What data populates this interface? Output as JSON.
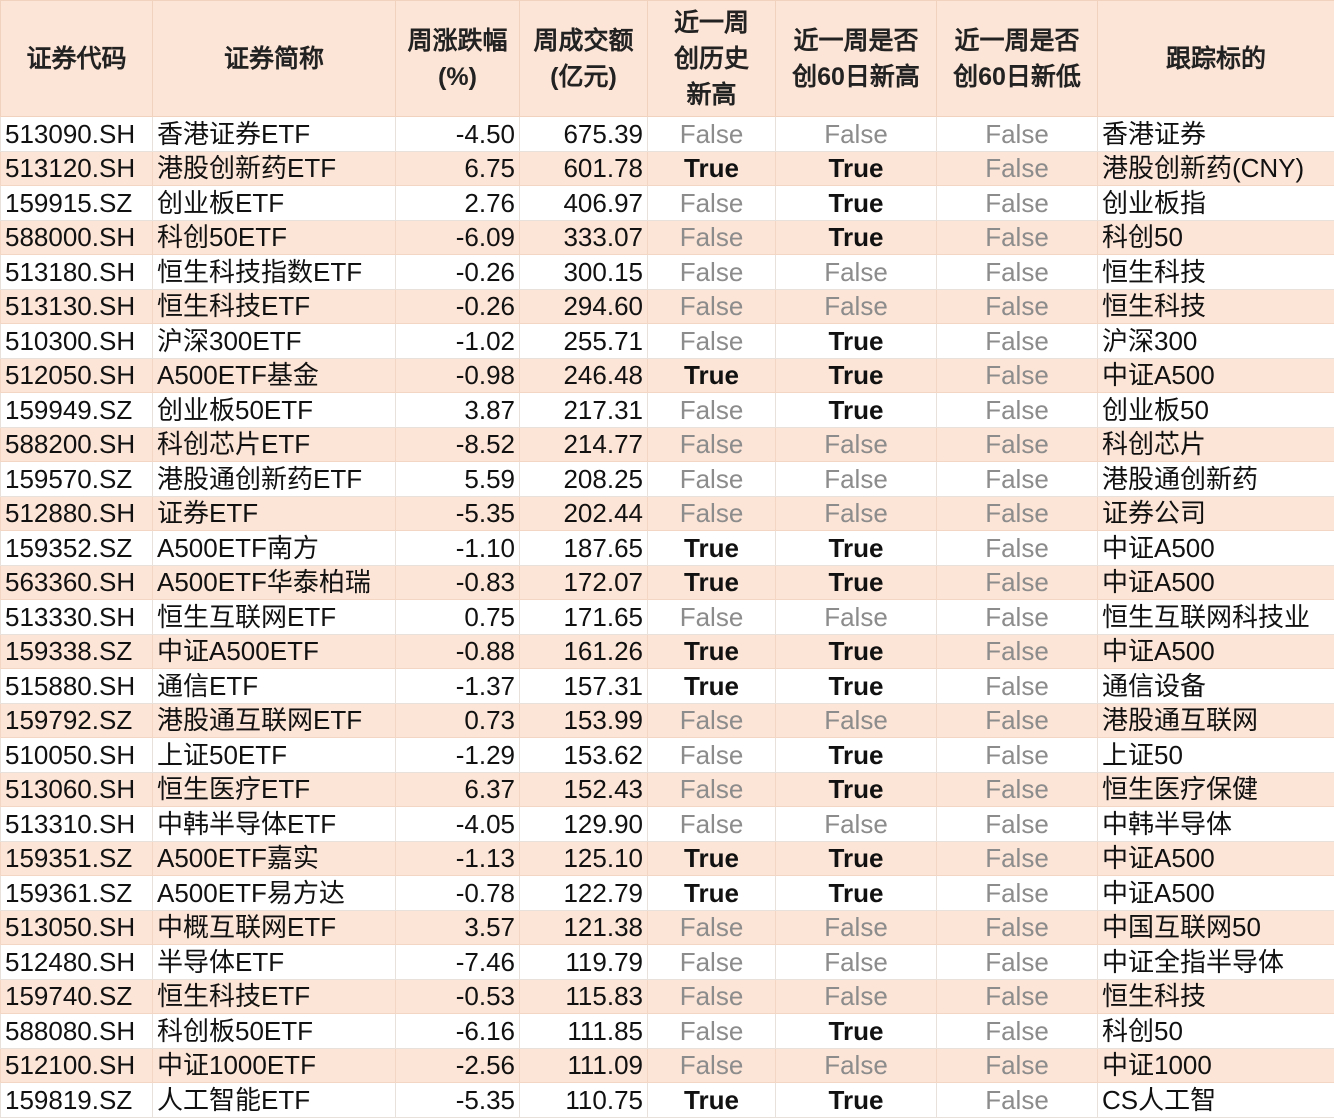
{
  "headers": [
    "证券代码",
    "证券简称",
    "周涨跌幅\n(%)",
    "周成交额\n(亿元)",
    "近一周\n创历史\n新高",
    "近一周是否\n创60日新高",
    "近一周是否\n创60日新低",
    "跟踪标的"
  ],
  "colors": {
    "header_bg": "#FCE4D6",
    "alt_row_bg": "#FCE4D6",
    "false_text": "#8c8c8c"
  },
  "rows": [
    [
      "513090.SH",
      "香港证券ETF",
      "-4.50",
      "675.39",
      "False",
      "False",
      "False",
      "香港证券"
    ],
    [
      "513120.SH",
      "港股创新药ETF",
      "6.75",
      "601.78",
      "True",
      "True",
      "False",
      "港股创新药(CNY)"
    ],
    [
      "159915.SZ",
      "创业板ETF",
      "2.76",
      "406.97",
      "False",
      "True",
      "False",
      "创业板指"
    ],
    [
      "588000.SH",
      "科创50ETF",
      "-6.09",
      "333.07",
      "False",
      "True",
      "False",
      "科创50"
    ],
    [
      "513180.SH",
      "恒生科技指数ETF",
      "-0.26",
      "300.15",
      "False",
      "False",
      "False",
      "恒生科技"
    ],
    [
      "513130.SH",
      "恒生科技ETF",
      "-0.26",
      "294.60",
      "False",
      "False",
      "False",
      "恒生科技"
    ],
    [
      "510300.SH",
      "沪深300ETF",
      "-1.02",
      "255.71",
      "False",
      "True",
      "False",
      "沪深300"
    ],
    [
      "512050.SH",
      "A500ETF基金",
      "-0.98",
      "246.48",
      "True",
      "True",
      "False",
      "中证A500"
    ],
    [
      "159949.SZ",
      "创业板50ETF",
      "3.87",
      "217.31",
      "False",
      "True",
      "False",
      "创业板50"
    ],
    [
      "588200.SH",
      "科创芯片ETF",
      "-8.52",
      "214.77",
      "False",
      "False",
      "False",
      "科创芯片"
    ],
    [
      "159570.SZ",
      "港股通创新药ETF",
      "5.59",
      "208.25",
      "False",
      "False",
      "False",
      "港股通创新药"
    ],
    [
      "512880.SH",
      "证券ETF",
      "-5.35",
      "202.44",
      "False",
      "False",
      "False",
      "证券公司"
    ],
    [
      "159352.SZ",
      "A500ETF南方",
      "-1.10",
      "187.65",
      "True",
      "True",
      "False",
      "中证A500"
    ],
    [
      "563360.SH",
      "A500ETF华泰柏瑞",
      "-0.83",
      "172.07",
      "True",
      "True",
      "False",
      "中证A500"
    ],
    [
      "513330.SH",
      "恒生互联网ETF",
      "0.75",
      "171.65",
      "False",
      "False",
      "False",
      "恒生互联网科技业"
    ],
    [
      "159338.SZ",
      "中证A500ETF",
      "-0.88",
      "161.26",
      "True",
      "True",
      "False",
      "中证A500"
    ],
    [
      "515880.SH",
      "通信ETF",
      "-1.37",
      "157.31",
      "True",
      "True",
      "False",
      "通信设备"
    ],
    [
      "159792.SZ",
      "港股通互联网ETF",
      "0.73",
      "153.99",
      "False",
      "False",
      "False",
      "港股通互联网"
    ],
    [
      "510050.SH",
      "上证50ETF",
      "-1.29",
      "153.62",
      "False",
      "True",
      "False",
      "上证50"
    ],
    [
      "513060.SH",
      "恒生医疗ETF",
      "6.37",
      "152.43",
      "False",
      "True",
      "False",
      "恒生医疗保健"
    ],
    [
      "513310.SH",
      "中韩半导体ETF",
      "-4.05",
      "129.90",
      "False",
      "False",
      "False",
      "中韩半导体"
    ],
    [
      "159351.SZ",
      "A500ETF嘉实",
      "-1.13",
      "125.10",
      "True",
      "True",
      "False",
      "中证A500"
    ],
    [
      "159361.SZ",
      "A500ETF易方达",
      "-0.78",
      "122.79",
      "True",
      "True",
      "False",
      "中证A500"
    ],
    [
      "513050.SH",
      "中概互联网ETF",
      "3.57",
      "121.38",
      "False",
      "False",
      "False",
      "中国互联网50"
    ],
    [
      "512480.SH",
      "半导体ETF",
      "-7.46",
      "119.79",
      "False",
      "False",
      "False",
      "中证全指半导体"
    ],
    [
      "159740.SZ",
      "恒生科技ETF",
      "-0.53",
      "115.83",
      "False",
      "False",
      "False",
      "恒生科技"
    ],
    [
      "588080.SH",
      "科创板50ETF",
      "-6.16",
      "111.85",
      "False",
      "True",
      "False",
      "科创50"
    ],
    [
      "512100.SH",
      "中证1000ETF",
      "-2.56",
      "111.09",
      "False",
      "False",
      "False",
      "中证1000"
    ],
    [
      "159819.SZ",
      "人工智能ETF",
      "-5.35",
      "110.75",
      "True",
      "True",
      "False",
      "CS人工智"
    ]
  ]
}
